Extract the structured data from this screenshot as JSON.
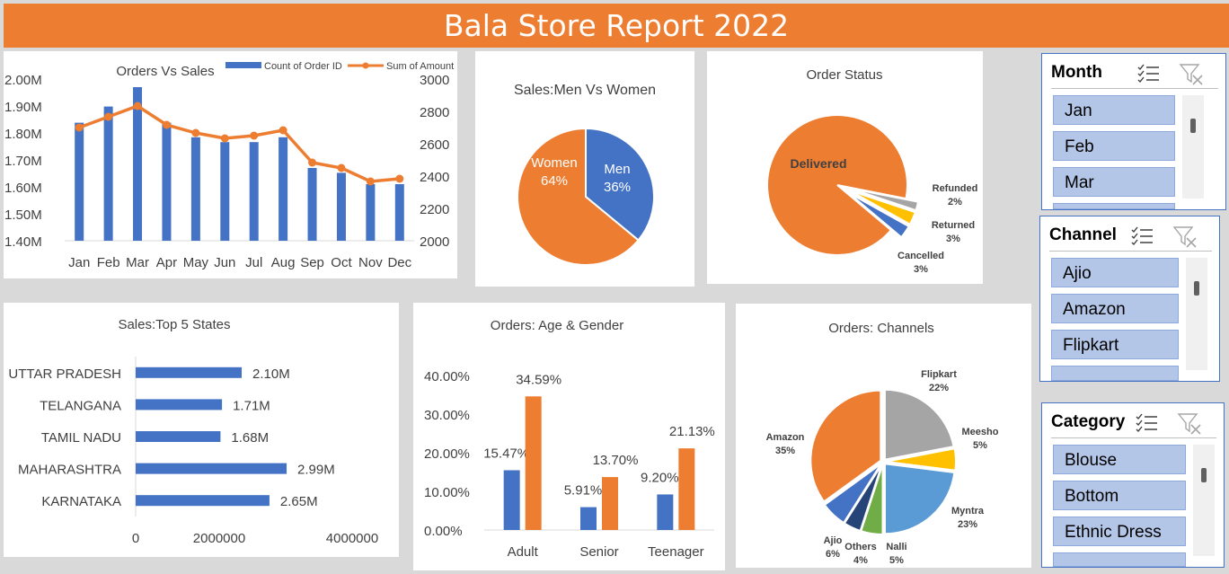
{
  "report_title": "Bala Store Report 2022",
  "colors": {
    "blue": "#4472c4",
    "orange": "#ed7d31",
    "gray": "#a5a5a5",
    "yellow": "#ffc000",
    "lightblue": "#5b9bd5",
    "green": "#70ad47",
    "navy": "#264478"
  },
  "chart_data": [
    {
      "type": "bar",
      "title": "Orders Vs Sales",
      "categories": [
        "Jan",
        "Feb",
        "Mar",
        "Apr",
        "May",
        "Jun",
        "Jul",
        "Aug",
        "Sep",
        "Oct",
        "Nov",
        "Dec"
      ],
      "series": [
        {
          "name": "Count of Order ID",
          "type": "bar",
          "axis": "right",
          "values": [
            2730,
            2830,
            2950,
            2730,
            2640,
            2610,
            2610,
            2640,
            2450,
            2420,
            2350,
            2350
          ]
        },
        {
          "name": "Sum of Amount",
          "type": "line",
          "axis": "left",
          "values": [
            1820000,
            1860000,
            1900000,
            1830000,
            1800000,
            1780000,
            1790000,
            1810000,
            1690000,
            1670000,
            1620000,
            1630000
          ]
        }
      ],
      "ylim_left": [
        1400000,
        2000000
      ],
      "yticks_left": [
        "1.40M",
        "1.50M",
        "1.60M",
        "1.70M",
        "1.80M",
        "1.90M",
        "2.00M"
      ],
      "ylim_right": [
        2000,
        3000
      ],
      "yticks_right": [
        "2000",
        "2200",
        "2400",
        "2600",
        "2800",
        "3000"
      ],
      "legend": "top-right"
    },
    {
      "type": "pie",
      "title": "Sales:Men Vs Women",
      "categories": [
        "Men",
        "Women"
      ],
      "values": [
        36,
        64
      ],
      "labels": [
        "36%",
        "64%"
      ]
    },
    {
      "type": "pie",
      "title": "Order Status",
      "categories": [
        "Delivered",
        "Refunded",
        "Returned",
        "Cancelled"
      ],
      "values": [
        92,
        2,
        3,
        3
      ],
      "labels": [
        "",
        "2%",
        "3%",
        "3%"
      ]
    },
    {
      "type": "bar",
      "orientation": "horizontal",
      "title": "Sales:Top 5 States",
      "categories": [
        "UTTAR PRADESH",
        "TELANGANA",
        "TAMIL NADU",
        "MAHARASHTRA",
        "KARNATAKA"
      ],
      "values": [
        2100000,
        1710000,
        1680000,
        2990000,
        2650000
      ],
      "data_labels": [
        "2.10M",
        "1.71M",
        "1.68M",
        "2.99M",
        "2.65M"
      ],
      "xlim": [
        0,
        5000000
      ],
      "xticks": [
        "0",
        "2000000",
        "4000000"
      ]
    },
    {
      "type": "bar",
      "title": "Orders: Age & Gender",
      "categories": [
        "Adult",
        "Senior",
        "Teenager"
      ],
      "series": [
        {
          "values": [
            15.47,
            5.91,
            9.2
          ],
          "labels": [
            "15.47%",
            "5.91%",
            "9.20%"
          ]
        },
        {
          "values": [
            34.59,
            13.7,
            21.13
          ],
          "labels": [
            "34.59%",
            "13.70%",
            "21.13%"
          ]
        }
      ],
      "ylim": [
        0,
        40
      ],
      "yticks": [
        "0.00%",
        "10.00%",
        "20.00%",
        "30.00%",
        "40.00%"
      ]
    },
    {
      "type": "pie",
      "title": "Orders: Channels",
      "categories": [
        "Flipkart",
        "Meesho",
        "Myntra",
        "Nalli",
        "Others",
        "Ajio",
        "Amazon"
      ],
      "values": [
        22,
        5,
        23,
        5,
        4,
        6,
        35
      ],
      "labels": [
        "22%",
        "5%",
        "23%",
        "5%",
        "4%",
        "6%",
        "35%"
      ]
    }
  ],
  "slicers": {
    "month": {
      "title": "Month",
      "items": [
        "Jan",
        "Feb",
        "Mar"
      ]
    },
    "channel": {
      "title": "Channel",
      "items": [
        "Ajio",
        "Amazon",
        "Flipkart"
      ]
    },
    "category": {
      "title": "Category",
      "items": [
        "Blouse",
        "Bottom",
        "Ethnic Dress"
      ]
    }
  }
}
